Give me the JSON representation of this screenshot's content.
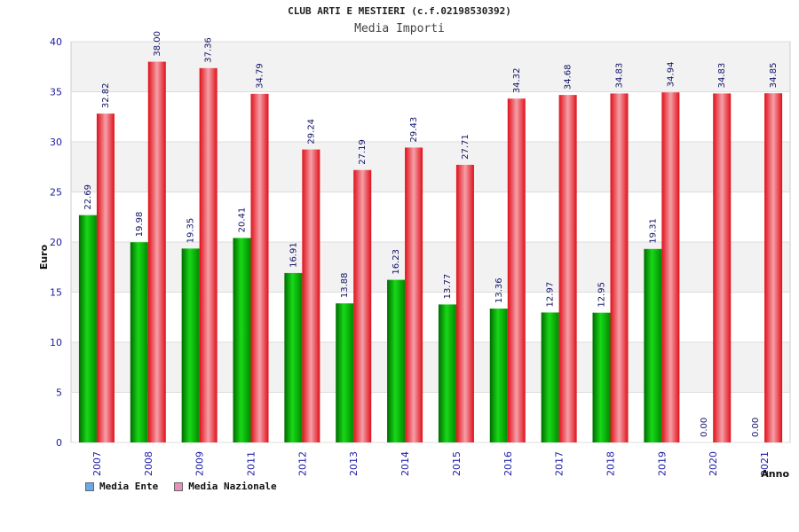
{
  "chart_data": {
    "type": "bar",
    "title": "CLUB ARTI E MESTIERI (c.f.02198530392)",
    "subtitle": "Media Importi",
    "xlabel": "Anno",
    "ylabel": "Euro",
    "ylim": [
      0,
      40
    ],
    "yticks": [
      0,
      5,
      10,
      15,
      20,
      25,
      30,
      35,
      40
    ],
    "categories": [
      "2007",
      "2008",
      "2009",
      "2011",
      "2012",
      "2013",
      "2014",
      "2015",
      "2016",
      "2017",
      "2018",
      "2019",
      "2020",
      "2021"
    ],
    "series": [
      {
        "name": "Media Ente",
        "color": "#00b400",
        "values": [
          22.69,
          19.98,
          19.35,
          20.41,
          16.91,
          13.88,
          16.23,
          13.77,
          13.36,
          12.97,
          12.95,
          19.31,
          0.0,
          0.0
        ],
        "labels": [
          "22.69",
          "19.98",
          "19.35",
          "20.41",
          "16.91",
          "13.88",
          "16.23",
          "13.77",
          "13.36",
          "12.97",
          "12.95",
          "19.31",
          "0.00",
          "0.00"
        ]
      },
      {
        "name": "Media Nazionale",
        "color": "#e8141e",
        "values": [
          32.82,
          38.0,
          37.36,
          34.79,
          29.24,
          27.19,
          29.43,
          27.71,
          34.32,
          34.68,
          34.83,
          34.94,
          34.83,
          34.85
        ],
        "labels": [
          "32.82",
          "38.00",
          "37.36",
          "34.79",
          "29.24",
          "27.19",
          "29.43",
          "27.71",
          "34.32",
          "34.68",
          "34.83",
          "34.94",
          "34.83",
          "34.85"
        ]
      }
    ],
    "legend": {
      "position": "bottom-left",
      "items": [
        {
          "label": "Media Ente",
          "color": "#6aa8e8"
        },
        {
          "label": "Media Nazionale",
          "color": "#e890b8"
        }
      ]
    },
    "grid": true
  }
}
